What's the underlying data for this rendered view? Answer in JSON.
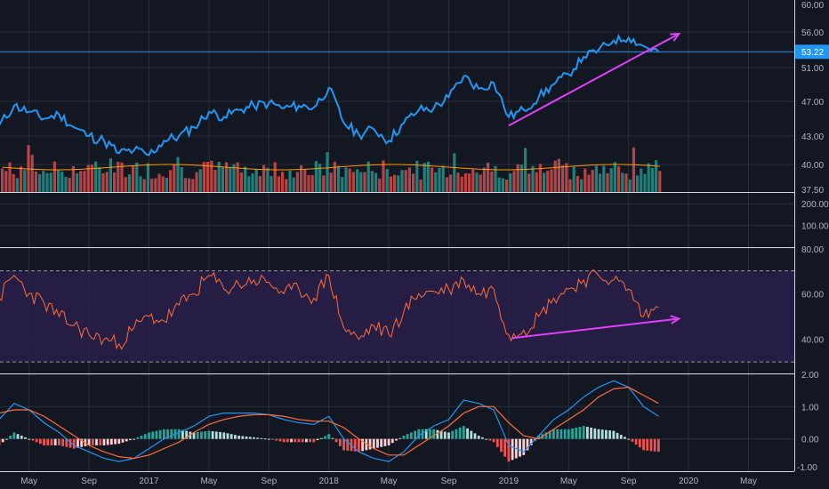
{
  "colors": {
    "background": "#131722",
    "grid": "#2a2e39",
    "axis_text": "#b2b5be",
    "price_line": "#2196f3",
    "volume_up": "#26a69a",
    "volume_down": "#ef5350",
    "volume_ma": "#ff9800",
    "rsi_line": "#ff6d3a",
    "rsi_band": "#2a1f4a",
    "macd_line": "#2196f3",
    "signal_line": "#ff6d3a",
    "hist_pos_strong": "#26a69a",
    "hist_pos_weak": "#b2dfdb",
    "hist_neg_strong": "#ef5350",
    "hist_neg_weak": "#ffcdd2",
    "annotation": "#e040fb",
    "price_tag": "#2196f3"
  },
  "chart_data": [
    {
      "type": "line",
      "panel": "price",
      "x_range": [
        "2016-03",
        "2020-09"
      ],
      "ylim": [
        37.5,
        60
      ],
      "y_ticks": [
        "60.00",
        "56.00",
        "53.22",
        "51.00",
        "47.00",
        "43.00",
        "40.00",
        "37.50"
      ],
      "last_price": "53.22",
      "x": [
        "2016-03",
        "2016-04",
        "2016-05",
        "2016-06",
        "2016-07",
        "2016-08",
        "2016-09",
        "2016-10",
        "2016-11",
        "2016-12",
        "2017-01",
        "2017-02",
        "2017-03",
        "2017-04",
        "2017-05",
        "2017-06",
        "2017-07",
        "2017-08",
        "2017-09",
        "2017-10",
        "2017-11",
        "2017-12",
        "2018-01",
        "2018-02",
        "2018-03",
        "2018-04",
        "2018-05",
        "2018-06",
        "2018-07",
        "2018-08",
        "2018-09",
        "2018-10",
        "2018-11",
        "2018-12",
        "2019-01",
        "2019-02",
        "2019-03",
        "2019-04",
        "2019-05",
        "2019-06",
        "2019-07",
        "2019-08",
        "2019-09",
        "2019-10",
        "2019-11"
      ],
      "values": [
        44.2,
        46.5,
        45.8,
        45.0,
        45.5,
        44.0,
        43.0,
        42.5,
        41.2,
        41.5,
        41.0,
        42.5,
        43.0,
        44.0,
        45.8,
        45.2,
        46.0,
        46.5,
        46.8,
        46.2,
        46.5,
        46.3,
        48.6,
        44.5,
        43.2,
        43.8,
        42.5,
        44.5,
        46.0,
        46.2,
        47.5,
        50.0,
        48.5,
        49.2,
        45.2,
        46.0,
        47.5,
        49.0,
        50.2,
        52.5,
        53.5,
        54.8,
        55.2,
        54.0,
        53.2
      ],
      "trendline": {
        "start": [
          "2019-01",
          44.2
        ],
        "end": [
          "2019-12",
          55.5
        ]
      }
    },
    {
      "type": "bar",
      "panel": "volume",
      "series": [
        {
          "name": "Volume MA",
          "type": "line"
        }
      ],
      "ylim": [
        0,
        250
      ],
      "y_ticks": [
        "200.00",
        "100.00"
      ]
    },
    {
      "type": "line",
      "panel": "rsi",
      "ylim": [
        25,
        80
      ],
      "y_ticks": [
        "80.00",
        "60.00",
        "40.00"
      ],
      "bands": [
        30,
        70
      ],
      "x": [
        "2016-03",
        "2016-04",
        "2016-05",
        "2016-06",
        "2016-07",
        "2016-08",
        "2016-09",
        "2016-10",
        "2016-11",
        "2016-12",
        "2017-01",
        "2017-02",
        "2017-03",
        "2017-04",
        "2017-05",
        "2017-06",
        "2017-07",
        "2017-08",
        "2017-09",
        "2017-10",
        "2017-11",
        "2017-12",
        "2018-01",
        "2018-02",
        "2018-03",
        "2018-04",
        "2018-05",
        "2018-06",
        "2018-07",
        "2018-08",
        "2018-09",
        "2018-10",
        "2018-11",
        "2018-12",
        "2019-01",
        "2019-02",
        "2019-03",
        "2019-04",
        "2019-05",
        "2019-06",
        "2019-07",
        "2019-08",
        "2019-09",
        "2019-10",
        "2019-11"
      ],
      "values": [
        58,
        68,
        60,
        56,
        50,
        46,
        42,
        40,
        38,
        45,
        50,
        48,
        55,
        60,
        68,
        62,
        64,
        66,
        65,
        60,
        62,
        58,
        68,
        45,
        40,
        46,
        42,
        52,
        60,
        61,
        62,
        66,
        60,
        62,
        42,
        44,
        50,
        58,
        62,
        66,
        68,
        66,
        62,
        50,
        54
      ],
      "trendline": {
        "start": [
          "2019-01",
          40.5
        ],
        "end": [
          "2019-12",
          49.0
        ]
      }
    },
    {
      "type": "line",
      "panel": "macd",
      "ylim": [
        -1.0,
        2.0
      ],
      "y_ticks": [
        "2.00",
        "1.00",
        "0.00",
        "-1.00"
      ],
      "x": [
        "2016-03",
        "2016-04",
        "2016-05",
        "2016-06",
        "2016-07",
        "2016-08",
        "2016-09",
        "2016-10",
        "2016-11",
        "2016-12",
        "2017-01",
        "2017-02",
        "2017-03",
        "2017-04",
        "2017-05",
        "2017-06",
        "2017-07",
        "2017-08",
        "2017-09",
        "2017-10",
        "2017-11",
        "2017-12",
        "2018-01",
        "2018-02",
        "2018-03",
        "2018-04",
        "2018-05",
        "2018-06",
        "2018-07",
        "2018-08",
        "2018-09",
        "2018-10",
        "2018-11",
        "2018-12",
        "2019-01",
        "2019-02",
        "2019-03",
        "2019-04",
        "2019-05",
        "2019-06",
        "2019-07",
        "2019-08",
        "2019-09",
        "2019-10",
        "2019-11"
      ],
      "series": [
        {
          "values": [
            0.6,
            1.1,
            0.9,
            0.5,
            0.2,
            -0.2,
            -0.4,
            -0.6,
            -0.7,
            -0.6,
            -0.3,
            0.0,
            0.2,
            0.4,
            0.7,
            0.8,
            0.8,
            0.8,
            0.75,
            0.6,
            0.5,
            0.45,
            0.7,
            0.0,
            -0.4,
            -0.6,
            -0.7,
            -0.4,
            0.1,
            0.4,
            0.6,
            1.2,
            1.1,
            0.9,
            -0.2,
            -0.4,
            0.1,
            0.6,
            0.9,
            1.3,
            1.6,
            1.8,
            1.6,
            1.0,
            0.7
          ]
        },
        {
          "values": [
            0.8,
            0.9,
            0.9,
            0.7,
            0.4,
            0.1,
            -0.2,
            -0.4,
            -0.55,
            -0.6,
            -0.5,
            -0.3,
            -0.1,
            0.2,
            0.45,
            0.6,
            0.7,
            0.75,
            0.75,
            0.7,
            0.6,
            0.55,
            0.55,
            0.35,
            0.0,
            -0.3,
            -0.5,
            -0.5,
            -0.2,
            0.1,
            0.4,
            0.8,
            1.0,
            1.0,
            0.5,
            0.1,
            0.0,
            0.3,
            0.6,
            0.9,
            1.3,
            1.55,
            1.6,
            1.35,
            1.1
          ]
        }
      ]
    }
  ],
  "x_axis_labels": [
    "May",
    "Sep",
    "2017",
    "May",
    "Sep",
    "2018",
    "May",
    "Sep",
    "2019",
    "May",
    "Sep",
    "2020",
    "May"
  ]
}
